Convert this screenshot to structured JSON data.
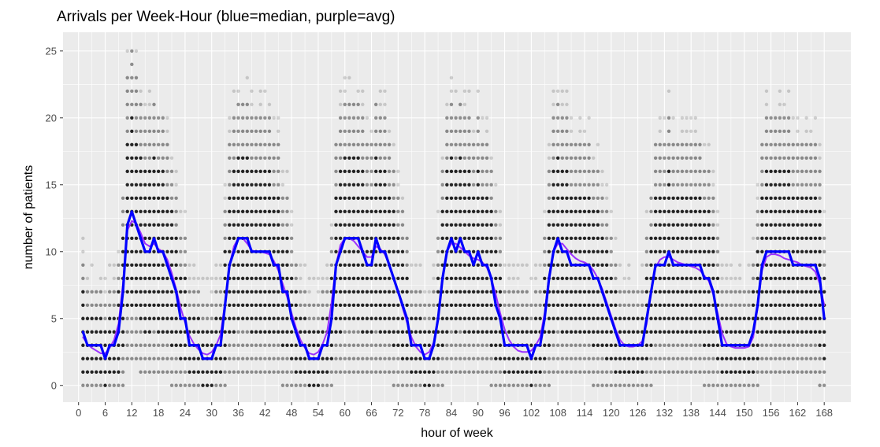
{
  "chart_data": {
    "type": "scatter",
    "title": "Arrivals per Week-Hour (blue=median, purple=avg)",
    "xlabel": "hour of week",
    "ylabel": "number of patients",
    "xlim": [
      -3.5,
      174
    ],
    "ylim": [
      -1.25,
      26.4
    ],
    "x_ticks": [
      0,
      6,
      12,
      18,
      24,
      30,
      36,
      42,
      48,
      54,
      60,
      66,
      72,
      78,
      84,
      90,
      96,
      102,
      108,
      114,
      120,
      126,
      132,
      138,
      144,
      150,
      156,
      162,
      168
    ],
    "y_ticks": [
      0,
      5,
      10,
      15,
      20,
      25
    ],
    "grid": true,
    "panel_background": "#ebebeb",
    "grid_color": "#ffffff",
    "points_color": "#000000",
    "points_note": "semi-transparent scatter of counts 0-25 at every integer hour 1-168",
    "series": [
      {
        "color": "#0000ff",
        "x": [
          1,
          2,
          3,
          4,
          5,
          6,
          7,
          8,
          9,
          10,
          11,
          12,
          13,
          14,
          15,
          16,
          17,
          18,
          19,
          20,
          21,
          22,
          23,
          24,
          25,
          26,
          27,
          28,
          29,
          30,
          31,
          32,
          33,
          34,
          35,
          36,
          37,
          38,
          39,
          40,
          41,
          42,
          43,
          44,
          45,
          46,
          47,
          48,
          49,
          50,
          51,
          52,
          53,
          54,
          55,
          56,
          57,
          58,
          59,
          60,
          61,
          62,
          63,
          64,
          65,
          66,
          67,
          68,
          69,
          70,
          71,
          72,
          73,
          74,
          75,
          76,
          77,
          78,
          79,
          80,
          81,
          82,
          83,
          84,
          85,
          86,
          87,
          88,
          89,
          90,
          91,
          92,
          93,
          94,
          95,
          96,
          97,
          98,
          99,
          100,
          101,
          102,
          103,
          104,
          105,
          106,
          107,
          108,
          109,
          110,
          111,
          112,
          113,
          114,
          115,
          116,
          117,
          118,
          119,
          120,
          121,
          122,
          123,
          124,
          125,
          126,
          127,
          128,
          129,
          130,
          131,
          132,
          133,
          134,
          135,
          136,
          137,
          138,
          139,
          140,
          141,
          142,
          143,
          144,
          145,
          146,
          147,
          148,
          149,
          150,
          151,
          152,
          153,
          154,
          155,
          156,
          157,
          158,
          159,
          160,
          161,
          162,
          163,
          164,
          165,
          166,
          167,
          168
        ],
        "values": [
          4,
          3,
          3,
          3,
          3,
          2,
          3,
          3,
          4,
          7,
          12,
          13,
          12,
          11,
          10,
          10,
          11,
          10,
          10,
          9,
          8,
          7,
          5,
          5,
          3,
          3,
          3,
          2,
          2,
          2,
          3,
          3,
          6,
          9,
          10,
          11,
          11,
          11,
          10,
          10,
          10,
          10,
          10,
          9,
          9,
          7,
          7,
          5,
          4,
          3,
          3,
          2,
          2,
          2,
          3,
          3,
          5,
          9,
          10,
          11,
          11,
          11,
          11,
          10,
          9,
          9,
          11,
          10,
          10,
          9,
          8,
          7,
          6,
          5,
          3,
          3,
          3,
          2,
          2,
          3,
          5,
          8,
          10,
          11,
          10,
          11,
          10,
          10,
          9,
          10,
          9,
          9,
          8,
          6,
          5,
          3,
          3,
          3,
          3,
          3,
          3,
          2,
          3,
          3,
          5,
          8,
          10,
          11,
          10,
          10,
          9,
          9,
          9,
          9,
          9,
          8,
          8,
          7,
          6,
          5,
          4,
          3,
          3,
          3,
          3,
          3,
          3,
          5,
          7,
          9,
          9,
          9,
          10,
          9,
          9,
          9,
          9,
          9,
          9,
          9,
          8,
          8,
          7,
          5,
          3,
          3,
          3,
          3,
          3,
          3,
          3,
          4,
          6,
          9,
          10,
          10,
          10,
          10,
          10,
          10,
          9,
          9,
          9,
          9,
          9,
          9,
          8,
          5
        ]
      },
      {
        "color": "#9b30ff",
        "x": [
          1,
          2,
          3,
          4,
          5,
          6,
          7,
          8,
          9,
          10,
          11,
          12,
          13,
          14,
          15,
          16,
          17,
          18,
          19,
          20,
          21,
          22,
          23,
          24,
          25,
          26,
          27,
          28,
          29,
          30,
          31,
          32,
          33,
          34,
          35,
          36,
          37,
          38,
          39,
          40,
          41,
          42,
          43,
          44,
          45,
          46,
          47,
          48,
          49,
          50,
          51,
          52,
          53,
          54,
          55,
          56,
          57,
          58,
          59,
          60,
          61,
          62,
          63,
          64,
          65,
          66,
          67,
          68,
          69,
          70,
          71,
          72,
          73,
          74,
          75,
          76,
          77,
          78,
          79,
          80,
          81,
          82,
          83,
          84,
          85,
          86,
          87,
          88,
          89,
          90,
          91,
          92,
          93,
          94,
          95,
          96,
          97,
          98,
          99,
          100,
          101,
          102,
          103,
          104,
          105,
          106,
          107,
          108,
          109,
          110,
          111,
          112,
          113,
          114,
          115,
          116,
          117,
          118,
          119,
          120,
          121,
          122,
          123,
          124,
          125,
          126,
          127,
          128,
          129,
          130,
          131,
          132,
          133,
          134,
          135,
          136,
          137,
          138,
          139,
          140,
          141,
          142,
          143,
          144,
          145,
          146,
          147,
          148,
          149,
          150,
          151,
          152,
          153,
          154,
          155,
          156,
          157,
          158,
          159,
          160,
          161,
          162,
          163,
          164,
          165,
          166,
          167,
          168
        ],
        "values": [
          3.6,
          3.1,
          2.8,
          2.6,
          2.4,
          2.4,
          2.8,
          3.4,
          4.6,
          7.6,
          11.6,
          12.3,
          12.1,
          11.4,
          10.6,
          10.4,
          10.6,
          10.2,
          10.0,
          9.4,
          8.4,
          7.2,
          5.8,
          4.7,
          3.7,
          3.1,
          2.7,
          2.4,
          2.3,
          2.5,
          3.0,
          3.8,
          6.2,
          9.0,
          10.4,
          11.0,
          11.0,
          10.6,
          10.1,
          10.0,
          10.0,
          9.9,
          9.8,
          9.3,
          8.6,
          7.6,
          6.6,
          5.4,
          4.3,
          3.4,
          2.8,
          2.4,
          2.3,
          2.5,
          3.1,
          4.0,
          6.2,
          9.0,
          10.5,
          11.0,
          11.0,
          10.8,
          10.4,
          10.0,
          9.6,
          9.6,
          10.4,
          10.2,
          9.8,
          9.0,
          8.0,
          7.0,
          5.8,
          4.7,
          3.6,
          2.9,
          2.5,
          2.3,
          2.5,
          3.2,
          5.0,
          8.0,
          10.0,
          10.6,
          10.6,
          10.3,
          10.0,
          9.7,
          9.5,
          9.4,
          9.2,
          8.8,
          8.0,
          6.8,
          5.4,
          4.2,
          3.4,
          2.9,
          2.6,
          2.5,
          2.5,
          2.6,
          3.0,
          3.6,
          5.4,
          8.2,
          10.0,
          10.6,
          10.6,
          10.2,
          9.8,
          9.5,
          9.3,
          9.2,
          9.0,
          8.6,
          8.0,
          7.2,
          6.2,
          5.2,
          4.2,
          3.4,
          3.0,
          2.9,
          2.9,
          3.0,
          3.3,
          4.6,
          7.0,
          8.8,
          9.4,
          9.6,
          9.6,
          9.4,
          9.2,
          9.1,
          9.0,
          8.9,
          8.8,
          8.6,
          8.2,
          7.8,
          6.8,
          5.4,
          3.9,
          3.1,
          2.9,
          2.8,
          2.8,
          2.8,
          2.9,
          3.6,
          5.8,
          8.6,
          9.6,
          9.8,
          9.8,
          9.7,
          9.5,
          9.4,
          9.3,
          9.2,
          9.0,
          8.9,
          8.8,
          8.5,
          7.6,
          6.0
        ]
      }
    ]
  }
}
